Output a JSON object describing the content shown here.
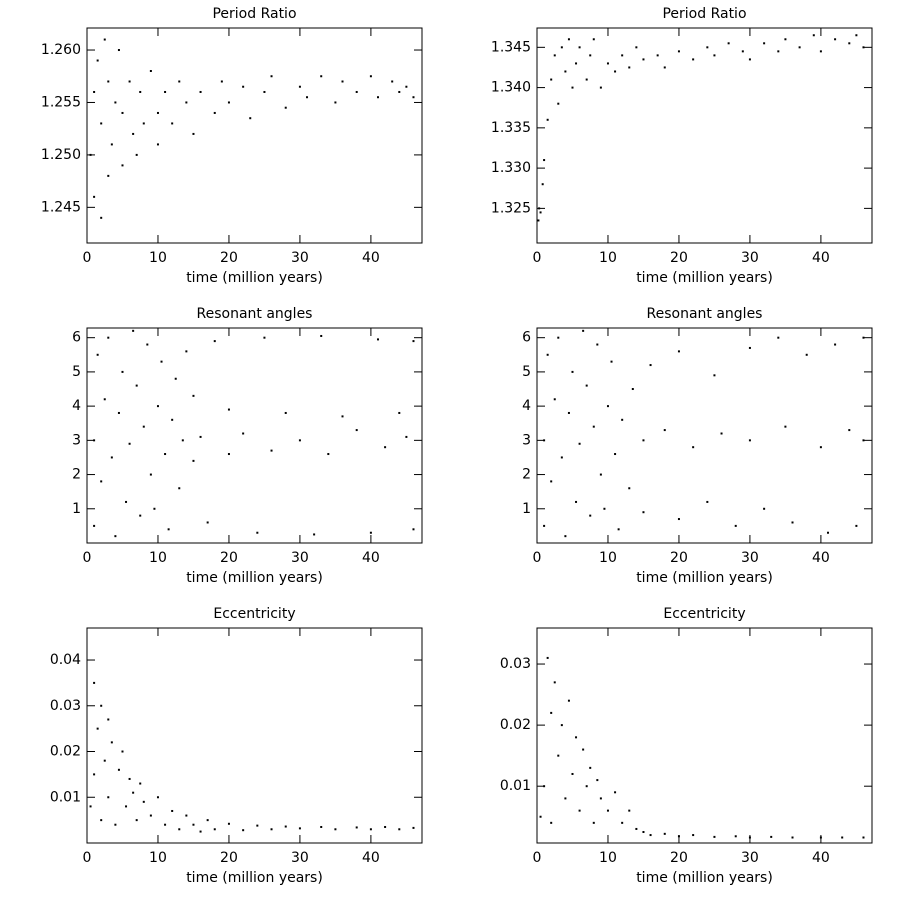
{
  "chart_data": [
    {
      "type": "scatter",
      "title": "Period Ratio",
      "x_label": "time (million years)",
      "color": "#000000",
      "xlim": [
        0,
        47.2
      ],
      "xticks": [
        0,
        10,
        20,
        30,
        40
      ],
      "ylim": [
        1.2416,
        1.2621
      ],
      "yticks": [
        1.245,
        {
          "value": 1.25,
          "label": "1.250"
        },
        1.255,
        {
          "value": 1.26,
          "label": "1.260"
        }
      ],
      "x": [
        0.5,
        1,
        1,
        1.5,
        2,
        2,
        2.5,
        3,
        3,
        3.5,
        4,
        4.5,
        5,
        5,
        6,
        6.5,
        7,
        7.5,
        8,
        9,
        10,
        10,
        11,
        12,
        13,
        14,
        15,
        16,
        18,
        19,
        20,
        22,
        23,
        25,
        26,
        28,
        30,
        31,
        33,
        35,
        36,
        38,
        40,
        41,
        43,
        44,
        45,
        46
      ],
      "values": [
        1.25,
        1.246,
        1.256,
        1.259,
        1.244,
        1.253,
        1.261,
        1.248,
        1.257,
        1.251,
        1.255,
        1.26,
        1.249,
        1.254,
        1.257,
        1.252,
        1.25,
        1.256,
        1.253,
        1.258,
        1.254,
        1.251,
        1.256,
        1.253,
        1.257,
        1.255,
        1.252,
        1.256,
        1.254,
        1.257,
        1.255,
        1.2565,
        1.2535,
        1.256,
        1.2575,
        1.2545,
        1.2565,
        1.2555,
        1.2575,
        1.255,
        1.257,
        1.256,
        1.2575,
        1.2555,
        1.257,
        1.256,
        1.2565,
        1.2555
      ]
    },
    {
      "type": "scatter",
      "title": "Period Ratio",
      "x_label": "time (million years)",
      "color": "#000000",
      "xlim": [
        0,
        47.2
      ],
      "xticks": [
        0,
        10,
        20,
        30,
        40
      ],
      "ylim": [
        1.3207,
        1.3474
      ],
      "yticks": [
        1.325,
        {
          "value": 1.33,
          "label": "1.330"
        },
        1.335,
        {
          "value": 1.34,
          "label": "1.340"
        },
        1.345
      ],
      "x": [
        0.2,
        0.3,
        0.5,
        0.8,
        1,
        1.5,
        2,
        2.5,
        3,
        3.5,
        4,
        4.5,
        5,
        5.5,
        6,
        7,
        7.5,
        8,
        9,
        10,
        11,
        12,
        13,
        14,
        15,
        17,
        18,
        20,
        22,
        24,
        25,
        27,
        29,
        30,
        32,
        34,
        35,
        37,
        39,
        40,
        42,
        44,
        45,
        46
      ],
      "values": [
        1.3235,
        1.325,
        1.3245,
        1.328,
        1.331,
        1.336,
        1.341,
        1.344,
        1.338,
        1.345,
        1.342,
        1.346,
        1.34,
        1.343,
        1.345,
        1.341,
        1.344,
        1.346,
        1.34,
        1.343,
        1.342,
        1.344,
        1.3425,
        1.345,
        1.3435,
        1.344,
        1.3425,
        1.3445,
        1.3435,
        1.345,
        1.344,
        1.3455,
        1.3445,
        1.3435,
        1.3455,
        1.3445,
        1.346,
        1.345,
        1.3465,
        1.3445,
        1.346,
        1.3455,
        1.3465,
        1.345
      ]
    },
    {
      "type": "scatter",
      "title": "Resonant angles",
      "x_label": "time (million years)",
      "color": "#000000",
      "xlim": [
        0,
        47.2
      ],
      "xticks": [
        0,
        10,
        20,
        30,
        40
      ],
      "ylim": [
        0,
        6.283
      ],
      "yticks": [
        1,
        2,
        3,
        4,
        5,
        6
      ],
      "x": [
        1,
        1,
        1.5,
        2,
        2.5,
        3,
        3.5,
        4,
        4.5,
        5,
        5.5,
        6,
        6.5,
        7,
        7.5,
        8,
        8.5,
        9,
        9.5,
        10,
        10.5,
        11,
        11.5,
        12,
        12.5,
        13,
        13.5,
        14,
        15,
        15,
        16,
        17,
        18,
        20,
        20,
        22,
        24,
        25,
        26,
        28,
        30,
        32,
        33,
        34,
        36,
        38,
        40,
        41,
        42,
        44,
        45,
        46,
        46
      ],
      "values": [
        0.5,
        3,
        5.5,
        1.8,
        4.2,
        6.0,
        2.5,
        0.2,
        3.8,
        5.0,
        1.2,
        2.9,
        6.2,
        4.6,
        0.8,
        3.4,
        5.8,
        2.0,
        1.0,
        4.0,
        5.3,
        2.6,
        0.4,
        3.6,
        4.8,
        1.6,
        3.0,
        5.6,
        2.4,
        4.3,
        3.1,
        0.6,
        5.9,
        2.6,
        3.9,
        3.2,
        0.3,
        6.0,
        2.7,
        3.8,
        3.0,
        0.25,
        6.05,
        2.6,
        3.7,
        3.3,
        0.3,
        5.95,
        2.8,
        3.8,
        3.1,
        0.4,
        5.9
      ]
    },
    {
      "type": "scatter",
      "title": "Resonant angles",
      "x_label": "time (million years)",
      "color": "#000000",
      "xlim": [
        0,
        47.2
      ],
      "xticks": [
        0,
        10,
        20,
        30,
        40
      ],
      "ylim": [
        0,
        6.283
      ],
      "yticks": [
        1,
        2,
        3,
        4,
        5,
        6
      ],
      "x": [
        1,
        1,
        1.5,
        2,
        2.5,
        3,
        3.5,
        4,
        4.5,
        5,
        5.5,
        6,
        6.5,
        7,
        7.5,
        8,
        8.5,
        9,
        9.5,
        10,
        10.5,
        11,
        11.5,
        12,
        13,
        13.5,
        15,
        15,
        16,
        18,
        20,
        20,
        22,
        24,
        25,
        26,
        28,
        30,
        30,
        32,
        34,
        35,
        36,
        38,
        40,
        41,
        42,
        44,
        45,
        46,
        46
      ],
      "values": [
        0.5,
        3,
        5.5,
        1.8,
        4.2,
        6.0,
        2.5,
        0.2,
        3.8,
        5.0,
        1.2,
        2.9,
        6.2,
        4.6,
        0.8,
        3.4,
        5.8,
        2.0,
        1.0,
        4.0,
        5.3,
        2.6,
        0.4,
        3.6,
        1.6,
        4.5,
        3.0,
        0.9,
        5.2,
        3.3,
        0.7,
        5.6,
        2.8,
        1.2,
        4.9,
        3.2,
        0.5,
        5.7,
        3.0,
        1.0,
        6.0,
        3.4,
        0.6,
        5.5,
        2.8,
        0.3,
        5.8,
        3.3,
        0.5,
        6.0,
        3.0
      ]
    },
    {
      "type": "scatter",
      "title": "Eccentricity",
      "x_label": "time (million years)",
      "color": "#000000",
      "xlim": [
        0,
        47.2
      ],
      "xticks": [
        0,
        10,
        20,
        30,
        40
      ],
      "ylim": [
        0,
        0.047
      ],
      "yticks": [
        0.01,
        0.02,
        0.03,
        0.04
      ],
      "x": [
        0.5,
        1,
        1,
        1.5,
        2,
        2,
        2.5,
        3,
        3,
        3.5,
        4,
        4.5,
        5,
        5.5,
        6,
        6.5,
        7,
        7.5,
        8,
        9,
        10,
        11,
        12,
        13,
        14,
        15,
        16,
        17,
        18,
        20,
        22,
        24,
        26,
        28,
        30,
        33,
        35,
        38,
        40,
        42,
        44,
        46
      ],
      "values": [
        0.008,
        0.035,
        0.015,
        0.025,
        0.005,
        0.03,
        0.018,
        0.027,
        0.01,
        0.022,
        0.004,
        0.016,
        0.02,
        0.008,
        0.014,
        0.011,
        0.005,
        0.013,
        0.009,
        0.006,
        0.01,
        0.004,
        0.007,
        0.003,
        0.006,
        0.004,
        0.0025,
        0.005,
        0.003,
        0.0042,
        0.0028,
        0.0038,
        0.003,
        0.0036,
        0.0032,
        0.0035,
        0.003,
        0.0034,
        0.003,
        0.0035,
        0.003,
        0.0033
      ]
    },
    {
      "type": "scatter",
      "title": "Eccentricity",
      "x_label": "time (million years)",
      "color": "#000000",
      "xlim": [
        0,
        47.2
      ],
      "xticks": [
        0,
        10,
        20,
        30,
        40
      ],
      "ylim": [
        0.0007,
        0.0359
      ],
      "yticks": [
        0.01,
        0.02,
        0.03
      ],
      "x": [
        0.5,
        1,
        1.5,
        2,
        2,
        2.5,
        3,
        3.5,
        4,
        4.5,
        5,
        5.5,
        6,
        6.5,
        7,
        7.5,
        8,
        8.5,
        9,
        10,
        11,
        12,
        13,
        14,
        15,
        16,
        18,
        20,
        22,
        25,
        28,
        30,
        33,
        36,
        40,
        43,
        46
      ],
      "values": [
        0.005,
        0.01,
        0.031,
        0.022,
        0.004,
        0.027,
        0.015,
        0.02,
        0.008,
        0.024,
        0.012,
        0.018,
        0.006,
        0.016,
        0.01,
        0.013,
        0.004,
        0.011,
        0.008,
        0.006,
        0.009,
        0.004,
        0.006,
        0.003,
        0.0025,
        0.002,
        0.0022,
        0.0018,
        0.002,
        0.0017,
        0.0018,
        0.0016,
        0.0017,
        0.0016,
        0.0016,
        0.0016,
        0.0016
      ]
    }
  ]
}
